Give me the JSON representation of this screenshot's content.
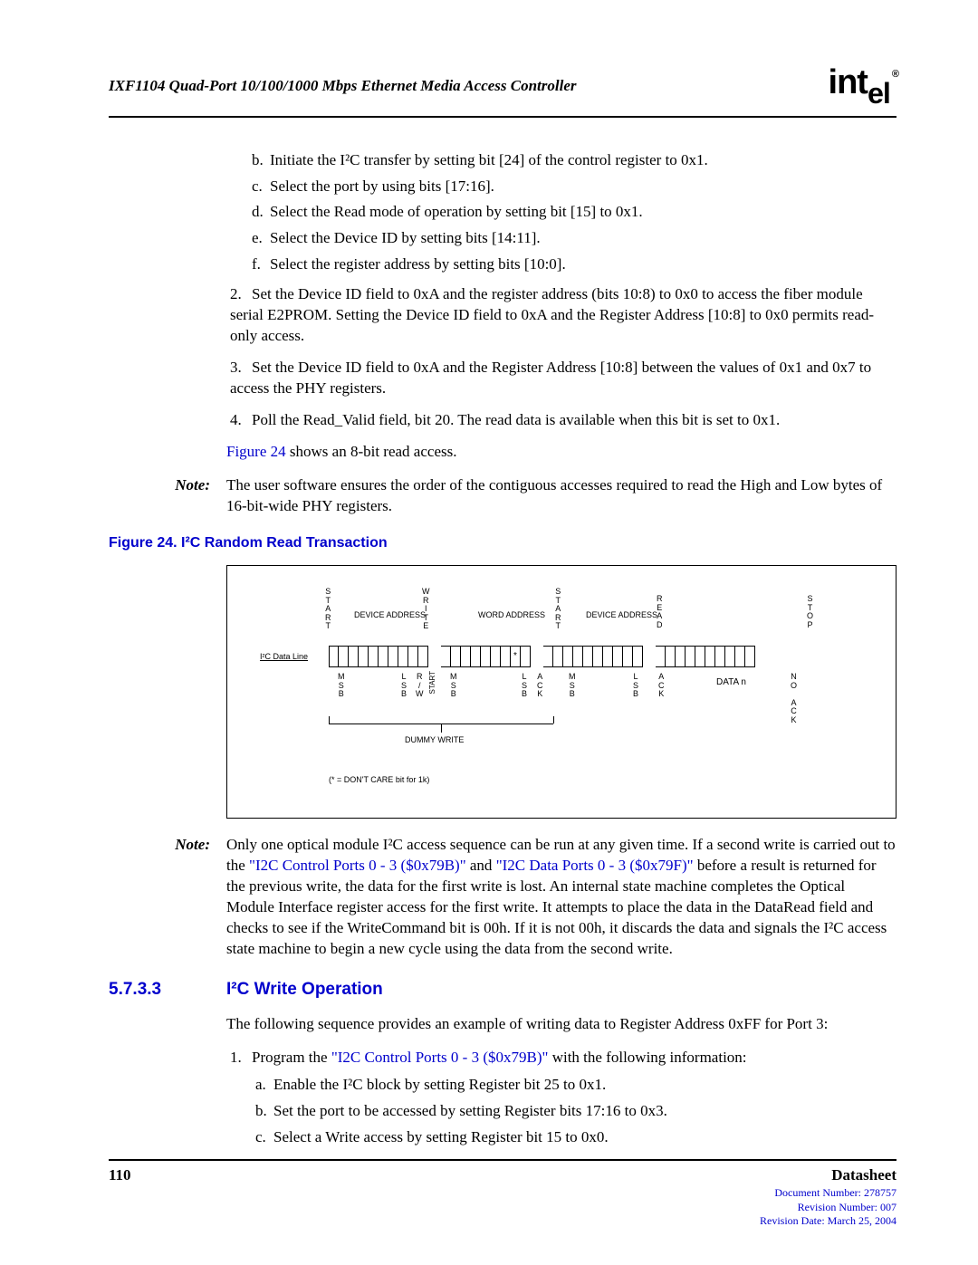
{
  "header": {
    "title": "IXF1104 Quad-Port 10/100/1000 Mbps Ethernet Media Access Controller",
    "logo_text": "int",
    "logo_suffix": "el",
    "logo_reg": "®"
  },
  "sub_items": {
    "b": "Initiate the I²C transfer by setting bit [24] of the control register to 0x1.",
    "c": "Select the port by using bits [17:16].",
    "d": "Select the Read mode of operation by setting bit [15] to 0x1.",
    "e": "Select the Device ID by setting bits [14:11].",
    "f": "Select the register address by setting bits [10:0]."
  },
  "num_items": {
    "n2": "Set the Device ID field to 0xA and the register address (bits 10:8) to 0x0 to access the fiber module serial E2PROM. Setting the Device ID field to 0xA and the Register Address [10:8] to 0x0 permits read-only access.",
    "n3": "Set the Device ID field to 0xA and the Register Address [10:8] between the values of 0x1 and 0x7 to access the PHY registers.",
    "n4": "Poll the Read_Valid field, bit 20. The read data is available when this bit is set to 0x1."
  },
  "para1_a": "Figure 24",
  "para1_b": " shows an 8-bit read access.",
  "note1": "The user software ensures the order of the contiguous accesses required to read the High and Low bytes of 16-bit-wide PHY registers.",
  "figure": {
    "title": "Figure 24. I²C Random Read Transaction",
    "i2c_label": "I²C Data Line",
    "top": {
      "start1": "S\nT\nA\nR\nT",
      "dev1": "DEVICE\nADDRESS",
      "write": "W\nR\nI\nT\nE",
      "word": "WORD\nADDRESS",
      "start2": "S\nT\nA\nR\nT",
      "dev2": "DEVICE\nADDRESS",
      "read": "R\nE\nA\nD",
      "stop": "S\nT\nO\nP"
    },
    "bot": {
      "msb": "M\nS\nB",
      "lsb": "L\nS\nB",
      "rw": "R\n/\nW",
      "ack": "A\nC\nK",
      "data": "DATA n",
      "nack": "N\nO\n\nA\nC\nK"
    },
    "dummy": "DUMMY WRITE",
    "star_inline": "*",
    "star_note": "(* = DON'T CARE bit for 1k)",
    "rotate": "START"
  },
  "note2_a": "Only one optical module I²C access sequence can be run at any given time. If a second write is carried out to the ",
  "note2_link1": "\"I2C Control Ports 0 - 3 ($0x79B)\"",
  "note2_b": " and ",
  "note2_link2": "\"I2C Data Ports 0 - 3 ($0x79F)\"",
  "note2_c": " before a result is returned for the previous write, the data for the first write is lost. An internal state machine completes the Optical Module Interface register access for the first write. It attempts to place the data in the DataRead field and checks to see if the WriteCommand bit is 00h. If it is not 00h, it discards the data and signals the I²C access state machine to begin a new cycle using the data from the second write.",
  "section": {
    "num": "5.7.3.3",
    "title": "I²C Write Operation"
  },
  "para2": "The following sequence provides an example of writing data to Register Address 0xFF for Port 3:",
  "write_steps": {
    "s1_a": "Program the ",
    "s1_link": "\"I2C Control Ports 0 - 3 ($0x79B)\"",
    "s1_b": " with the following information:",
    "a": "Enable the I²C block by setting Register bit 25 to 0x1.",
    "b": "Set the port to be accessed by setting Register bits 17:16 to 0x3.",
    "c": "Select a Write access by setting Register bit 15 to 0x0."
  },
  "note_label": "Note:",
  "footer": {
    "page": "110",
    "ds": "Datasheet",
    "doc": "Document Number: 278757",
    "rev": "Revision Number: 007",
    "date": "Revision Date: March 25, 2004"
  }
}
